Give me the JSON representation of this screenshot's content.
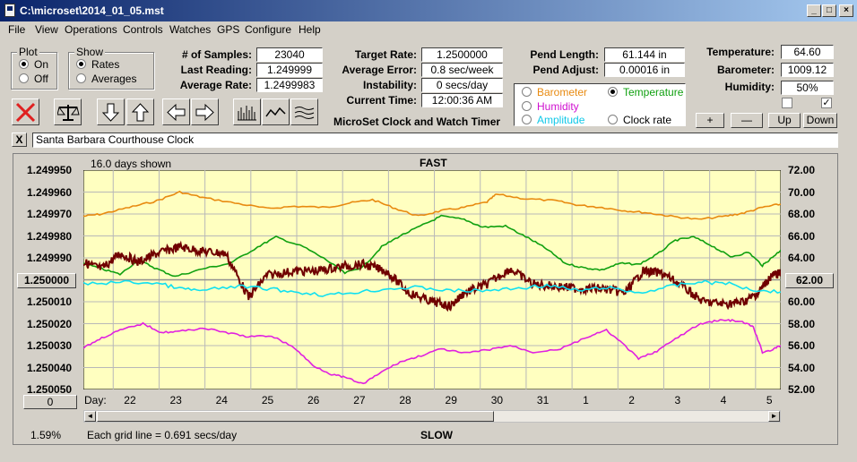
{
  "window": {
    "title": "C:\\microset\\2014_01_05.mst"
  },
  "menu": [
    "File",
    "View",
    "Operations",
    "Controls",
    "Watches",
    "GPS",
    "Configure",
    "Help"
  ],
  "plot_group": {
    "label": "Plot",
    "on": "On",
    "off": "Off",
    "selected": "On"
  },
  "show_group": {
    "label": "Show",
    "rates": "Rates",
    "averages": "Averages",
    "selected": "Rates"
  },
  "stats": {
    "samples_label": "# of Samples:",
    "samples": "23040",
    "last_label": "Last Reading:",
    "last": "1.249999",
    "avg_label": "Average Rate:",
    "avg": "1.2499983",
    "target_label": "Target Rate:",
    "target": "1.2500000",
    "avgerr_label": "Average Error:",
    "avgerr": "0.8 sec/week",
    "instab_label": "Instability:",
    "instab": "0 secs/day",
    "time_label": "Current Time:",
    "time": "12:00:36 AM",
    "pendlen_label": "Pend Length:",
    "pendlen": "61.144 in",
    "pendadj_label": "Pend Adjust:",
    "pendadj": "0.00016 in",
    "temp_label": "Temperature:",
    "temp": "64.60",
    "baro_label": "Barometer:",
    "baro": "1009.12",
    "hum_label": "Humidity:",
    "hum": "50%"
  },
  "app_title": "MicroSet Clock and Watch Timer",
  "series_select": {
    "barometer": "Barometer",
    "temperature": "Temperature",
    "humidity": "Humidity",
    "amplitude": "Amplitude",
    "clockrate": "Clock rate",
    "selected": "Temperature"
  },
  "axis_buttons": {
    "plus": "+",
    "minus": "—",
    "up": "Up",
    "down": "Down"
  },
  "clock_name": "Santa Barbara Courthouse Clock",
  "close_x": "X",
  "plot": {
    "days_shown": "16.0 days shown",
    "top_label": "FAST",
    "bottom_label": "SLOW",
    "left_center": "1.250000",
    "right_center": "62.00",
    "left_bottom_btn": "0",
    "percent": "1.59%",
    "grid_note": "Each grid line = 0.691 secs/day",
    "day_label": "Day:"
  },
  "colors": {
    "plot_bg": "#ffffc0",
    "grid": "#b8b8b8",
    "barometer": "#e88a10",
    "temperature": "#10a010",
    "rate": "#700000",
    "amplitude": "#10e0f0",
    "humidity": "#e020e0"
  },
  "chart_data": {
    "type": "line",
    "xlabel": "Day:",
    "x_tick_labels": [
      "22",
      "23",
      "24",
      "25",
      "26",
      "27",
      "28",
      "29",
      "30",
      "31",
      "1",
      "2",
      "3",
      "4",
      "5"
    ],
    "y_left_ticks": [
      "1.249950",
      "1.249960",
      "1.249970",
      "1.249980",
      "1.249990",
      "1.250000",
      "1.250010",
      "1.250020",
      "1.250030",
      "1.250040",
      "1.250050"
    ],
    "y_right_ticks": [
      "72.00",
      "70.00",
      "68.00",
      "66.00",
      "64.00",
      "62.00",
      "60.00",
      "58.00",
      "56.00",
      "54.00",
      "52.00"
    ],
    "ylim_left": [
      1.24995,
      1.25005
    ],
    "ylim_right": [
      52,
      72
    ],
    "left_axis_inverted": true,
    "grid": true,
    "series": [
      {
        "name": "Barometer",
        "color": "#e88a10",
        "x": [
          21.2,
          21.6,
          22.2,
          22.8,
          23.3,
          23.8,
          24.5,
          25.2,
          25.8,
          26.5,
          27.0,
          27.5,
          28.0,
          28.5,
          29.0,
          29.5,
          30.0,
          30.2,
          30.8,
          31.5,
          32.0,
          32.5,
          33.0,
          33.5,
          34.0,
          34.6,
          35.2,
          35.6,
          36.0,
          36.4
        ],
        "y": [
          67.8,
          68.0,
          68.6,
          69.2,
          70.0,
          69.5,
          69.0,
          68.5,
          68.7,
          68.6,
          69.0,
          69.3,
          68.5,
          67.8,
          68.3,
          68.6,
          69.1,
          69.8,
          69.4,
          69.2,
          68.8,
          68.6,
          68.3,
          68.1,
          67.8,
          67.5,
          67.8,
          68.1,
          68.6,
          68.9
        ]
      },
      {
        "name": "Temperature",
        "color": "#10a010",
        "x": [
          21.2,
          21.6,
          22.0,
          22.4,
          22.8,
          23.2,
          23.8,
          24.4,
          25.0,
          25.4,
          26.0,
          26.5,
          26.9,
          27.3,
          27.7,
          28.1,
          28.6,
          29.0,
          29.5,
          29.9,
          30.4,
          30.9,
          31.3,
          31.7,
          32.1,
          32.5,
          32.9,
          33.3,
          33.7,
          34.1,
          34.5,
          34.9,
          35.3,
          35.7,
          36.0,
          36.2,
          36.4
        ],
        "y": [
          63.5,
          63.0,
          62.5,
          63.8,
          63.0,
          62.3,
          63.0,
          63.5,
          65.0,
          65.9,
          65.0,
          63.8,
          62.6,
          63.2,
          65.0,
          66.0,
          67.0,
          67.8,
          67.5,
          66.8,
          66.9,
          65.8,
          64.8,
          63.5,
          63.1,
          62.9,
          63.5,
          63.4,
          64.3,
          65.6,
          65.9,
          65.1,
          64.1,
          64.5,
          63.3,
          64.0,
          64.7
        ]
      },
      {
        "name": "Rate",
        "color": "#700000",
        "x": [
          21.2,
          21.6,
          22.0,
          22.4,
          22.8,
          23.3,
          23.8,
          24.3,
          24.8,
          25.2,
          25.8,
          26.3,
          26.8,
          27.3,
          27.8,
          28.3,
          28.8,
          29.2,
          29.5,
          30.0,
          30.5,
          31.0,
          31.5,
          32.0,
          32.5,
          33.0,
          33.4,
          33.8,
          34.2,
          34.7,
          35.2,
          35.6,
          35.9,
          36.2,
          36.4
        ],
        "y": [
          1.249992,
          1.249995,
          1.249988,
          1.249992,
          1.249988,
          1.249985,
          1.249987,
          1.249988,
          1.250008,
          1.249998,
          1.249996,
          1.249996,
          1.249994,
          1.249993,
          1.249996,
          1.250006,
          1.25001,
          1.250012,
          1.250006,
          1.250002,
          1.249995,
          1.250002,
          1.250003,
          1.250004,
          1.250004,
          1.250006,
          1.249996,
          1.249997,
          1.250002,
          1.25001,
          1.250011,
          1.25001,
          1.250006,
          1.249998,
          1.249997
        ]
      },
      {
        "name": "Amplitude",
        "color": "#10e0f0",
        "x": [
          21.2,
          22.0,
          22.8,
          23.3,
          23.8,
          24.5,
          25.2,
          25.8,
          26.5,
          27.2,
          27.9,
          28.5,
          29.2,
          29.9,
          30.6,
          31.3,
          32.0,
          32.6,
          33.3,
          34.0,
          34.6,
          35.2,
          35.8,
          36.4
        ],
        "y": [
          61.6,
          61.8,
          61.7,
          61.2,
          61.0,
          61.4,
          61.2,
          60.9,
          60.6,
          60.9,
          61.2,
          61.3,
          61.0,
          61.0,
          61.2,
          61.5,
          61.0,
          61.3,
          60.8,
          61.4,
          61.8,
          61.7,
          61.1,
          60.9
        ]
      },
      {
        "name": "Humidity",
        "color": "#e020e0",
        "x": [
          21.2,
          21.6,
          22.0,
          22.5,
          22.9,
          23.3,
          23.8,
          24.3,
          24.8,
          25.3,
          25.8,
          26.2,
          26.6,
          26.9,
          27.3,
          27.7,
          28.1,
          28.5,
          29.0,
          29.5,
          30.0,
          30.5,
          31.0,
          31.6,
          32.2,
          32.6,
          33.0,
          33.3,
          33.7,
          34.1,
          34.6,
          35.0,
          35.3,
          35.6,
          35.8,
          36.0,
          36.2,
          36.4
        ],
        "y": [
          55.8,
          56.7,
          57.4,
          58.0,
          57.2,
          57.3,
          57.6,
          57.2,
          56.8,
          56.9,
          55.8,
          54.2,
          53.4,
          53.1,
          52.5,
          53.6,
          54.5,
          55.0,
          55.7,
          55.3,
          55.6,
          56.0,
          55.4,
          55.7,
          56.8,
          57.4,
          56.0,
          54.8,
          55.5,
          56.6,
          57.9,
          58.3,
          58.3,
          58.1,
          57.7,
          55.4,
          55.6,
          56.0
        ]
      }
    ]
  }
}
